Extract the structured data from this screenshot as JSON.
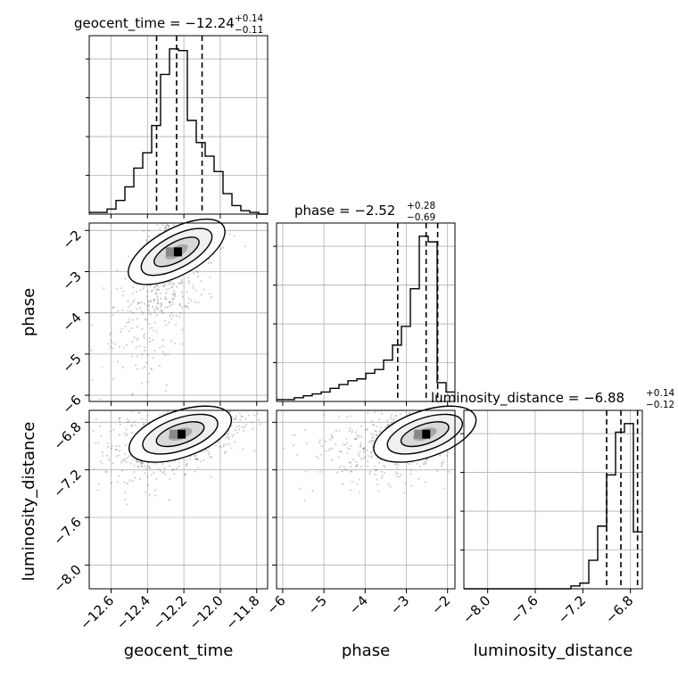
{
  "chart_data": {
    "type": "corner",
    "parameters": [
      "geocent_time",
      "phase",
      "luminosity_distance"
    ],
    "axis_labels": [
      "geocent_time",
      "phase",
      "luminosity_distance"
    ],
    "ranges": {
      "geocent_time": [
        -12.72,
        -11.74
      ],
      "phase": [
        -6.15,
        -1.82
      ],
      "luminosity_distance": [
        -8.2,
        -6.7
      ]
    },
    "ticks": {
      "geocent_time": [
        -12.6,
        -12.4,
        -12.2,
        -12.0,
        -11.8
      ],
      "phase": [
        -6,
        -5,
        -4,
        -3,
        -2
      ],
      "luminosity_distance": [
        -8.0,
        -7.6,
        -7.2,
        -6.8
      ]
    },
    "tick_labels": {
      "geocent_time": [
        "−12.6",
        "−12.4",
        "−12.2",
        "−12.0",
        "−11.8"
      ],
      "phase": [
        "−6",
        "−5",
        "−4",
        "−3",
        "−2"
      ],
      "luminosity_distance": [
        "−8.0",
        "−7.6",
        "−7.2",
        "−6.8"
      ]
    },
    "summaries": [
      {
        "name": "geocent_time",
        "median": "−12.24",
        "plus": "+0.14",
        "minus": "−0.11",
        "q16": -12.35,
        "q50": -12.24,
        "q84": -12.1
      },
      {
        "name": "phase",
        "median": "−2.52",
        "plus": "+0.28",
        "minus": "−0.69",
        "q16": -3.21,
        "q50": -2.52,
        "q84": -2.24
      },
      {
        "name": "luminosity_distance",
        "median": "−6.88",
        "plus": "+0.14",
        "minus": "−0.12",
        "q16": -7.0,
        "q50": -6.88,
        "q84": -6.74
      }
    ],
    "histograms": {
      "geocent_time": {
        "bin_edges": [
          -12.72,
          -12.671,
          -12.622,
          -12.573,
          -12.524,
          -12.475,
          -12.426,
          -12.377,
          -12.328,
          -12.279,
          -12.23,
          -12.181,
          -12.132,
          -12.083,
          -12.034,
          -11.985,
          -11.936,
          -11.887,
          -11.838,
          -11.789,
          -11.74
        ],
        "counts": [
          1,
          1,
          3,
          8,
          16,
          27,
          36,
          52,
          82,
          97,
          96,
          55,
          42,
          34,
          25,
          12,
          5,
          2,
          1,
          0
        ]
      },
      "phase": {
        "bin_edges": [
          -6.15,
          -5.9335,
          -5.717,
          -5.5005,
          -5.284,
          -5.0675,
          -4.851,
          -4.6345,
          -4.418,
          -4.2015,
          -3.985,
          -3.7685,
          -3.552,
          -3.3355,
          -3.119,
          -2.9025,
          -2.686,
          -2.4695,
          -2.253,
          -2.0365,
          -1.82
        ],
        "counts": [
          1,
          1,
          2,
          3,
          4,
          5,
          7,
          9,
          11,
          12,
          15,
          17,
          22,
          30,
          40,
          60,
          88,
          85,
          10,
          5
        ]
      },
      "luminosity_distance": {
        "bin_edges": [
          -8.2,
          -8.125,
          -8.05,
          -7.975,
          -7.9,
          -7.825,
          -7.75,
          -7.675,
          -7.6,
          -7.525,
          -7.45,
          -7.375,
          -7.3,
          -7.225,
          -7.15,
          -7.075,
          -7.0,
          -6.925,
          -6.85,
          -6.775,
          -6.7
        ],
        "counts": [
          0,
          0,
          0,
          0,
          0,
          0,
          0,
          0,
          0,
          0,
          0,
          0,
          1,
          2,
          10,
          22,
          40,
          55,
          58,
          20
        ]
      }
    },
    "density": {
      "phase_vs_geocent_time": {
        "x_center": -12.24,
        "y_center": -2.52
      },
      "luminosity_distance_vs_geocent_time": {
        "x_center": -12.22,
        "y_center": -6.9
      },
      "luminosity_distance_vs_phase": {
        "x_center": -2.55,
        "y_center": -6.9
      }
    },
    "grid": true,
    "legend": "none"
  }
}
